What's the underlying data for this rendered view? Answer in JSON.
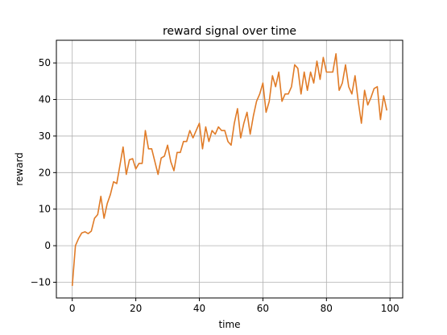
{
  "chart_data": {
    "type": "line",
    "title": "reward signal over time",
    "xlabel": "time",
    "ylabel": "reward",
    "xlim": [
      -5,
      104
    ],
    "ylim": [
      -14.3,
      56.2
    ],
    "xticks": [
      0,
      20,
      40,
      60,
      80,
      100
    ],
    "yticks": [
      -10,
      0,
      10,
      20,
      30,
      40,
      50
    ],
    "grid": true,
    "legend": "none",
    "series": [
      {
        "color": "#e07b27",
        "x": [
          0,
          1,
          2,
          3,
          4,
          5,
          6,
          7,
          8,
          9,
          10,
          11,
          12,
          13,
          14,
          15,
          16,
          17,
          18,
          19,
          20,
          21,
          22,
          23,
          24,
          25,
          26,
          27,
          28,
          29,
          30,
          31,
          32,
          33,
          34,
          35,
          36,
          37,
          38,
          39,
          40,
          41,
          42,
          43,
          44,
          45,
          46,
          47,
          48,
          49,
          50,
          51,
          52,
          53,
          54,
          55,
          56,
          57,
          58,
          59,
          60,
          61,
          62,
          63,
          64,
          65,
          66,
          67,
          68,
          69,
          70,
          71,
          72,
          73,
          74,
          75,
          76,
          77,
          78,
          79,
          80,
          81,
          82,
          83,
          84,
          85,
          86,
          87,
          88,
          89,
          90,
          91,
          92,
          93,
          94,
          95,
          96,
          97,
          98,
          99
        ],
        "values": [
          -11.0,
          0.0,
          2.0,
          3.5,
          3.8,
          3.3,
          4.0,
          7.5,
          8.5,
          13.5,
          7.5,
          11.5,
          14.0,
          17.5,
          17.0,
          22.0,
          27.0,
          19.5,
          23.5,
          23.8,
          21.0,
          22.5,
          22.5,
          31.5,
          26.5,
          26.5,
          23.0,
          19.5,
          24.0,
          24.5,
          27.5,
          23.0,
          20.5,
          25.5,
          25.5,
          28.5,
          28.5,
          31.5,
          29.5,
          31.5,
          33.5,
          26.5,
          32.5,
          28.5,
          31.5,
          30.5,
          32.5,
          31.5,
          31.5,
          28.5,
          27.5,
          33.5,
          37.5,
          29.5,
          33.5,
          36.5,
          30.5,
          35.5,
          39.5,
          41.5,
          44.5,
          36.5,
          39.5,
          46.5,
          43.5,
          47.5,
          39.5,
          41.5,
          41.5,
          43.5,
          49.5,
          48.5,
          41.5,
          47.5,
          42.5,
          47.5,
          44.5,
          50.5,
          45.5,
          51.5,
          47.5,
          47.5,
          47.5,
          52.5,
          42.5,
          44.5,
          49.5,
          43.5,
          41.5,
          46.5,
          39.5,
          33.5,
          42.5,
          38.5,
          40.5,
          43.0,
          43.5,
          34.5,
          41.0,
          37.0
        ]
      }
    ]
  }
}
